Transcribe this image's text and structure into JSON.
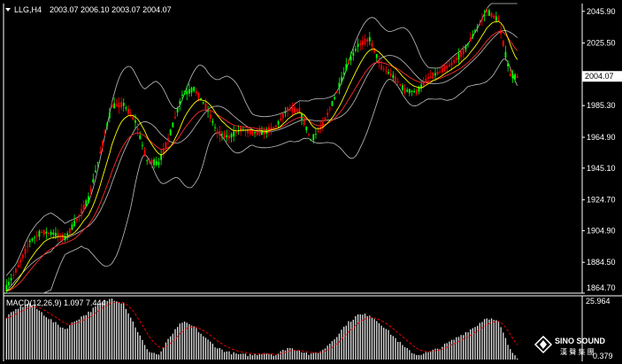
{
  "header": {
    "symbol_label": "LLG,H4",
    "ohlc_text": "2003.07 2006.10 2003.07 2004.07"
  },
  "price_axis": {
    "ticks": [
      "2045.90",
      "2025.50",
      "2004.07",
      "1985.30",
      "1964.90",
      "1945.10",
      "1924.70",
      "1904.90",
      "1884.50",
      "1864.70"
    ],
    "current_price": "2004.07",
    "range": [
      1864.7,
      2050.9
    ]
  },
  "macd": {
    "label": "MACD(12,26,9) 1.097 7.444",
    "top_value": "25.964",
    "bottom_value": "0.379",
    "range": [
      0,
      26
    ]
  },
  "logo": {
    "brand": "SINO SOUND",
    "subtitle": "漢 聲 集 團"
  },
  "colors": {
    "background": "#000000",
    "bull_candle": "#ff0000",
    "bear_candle": "#00ff00",
    "ma_fast": "#ffff00",
    "ma_slow": "#ff2a2a",
    "bollinger": "#c0c0c0",
    "macd_histogram": "#e0e0e0",
    "macd_signal": "#ff0000",
    "axis": "#ffffff"
  },
  "chart_data": {
    "type": "candlestick",
    "price_anchor_points": [
      [
        0,
        1868
      ],
      [
        5,
        1882
      ],
      [
        10,
        1898
      ],
      [
        15,
        1904
      ],
      [
        20,
        1903
      ],
      [
        25,
        1900
      ],
      [
        30,
        1912
      ],
      [
        35,
        1925
      ],
      [
        40,
        1955
      ],
      [
        45,
        1985
      ],
      [
        50,
        1986
      ],
      [
        55,
        1975
      ],
      [
        60,
        1950
      ],
      [
        65,
        1948
      ],
      [
        70,
        1968
      ],
      [
        75,
        1992
      ],
      [
        80,
        1996
      ],
      [
        85,
        1985
      ],
      [
        90,
        1968
      ],
      [
        95,
        1965
      ],
      [
        100,
        1970
      ],
      [
        105,
        1968
      ],
      [
        110,
        1968
      ],
      [
        115,
        1972
      ],
      [
        120,
        1983
      ],
      [
        125,
        1982
      ],
      [
        130,
        1963
      ],
      [
        135,
        1973
      ],
      [
        140,
        1990
      ],
      [
        145,
        2010
      ],
      [
        150,
        2024
      ],
      [
        155,
        2028
      ],
      [
        160,
        2010
      ],
      [
        165,
        2004
      ],
      [
        170,
        1995
      ],
      [
        175,
        1994
      ],
      [
        180,
        2003
      ],
      [
        185,
        2007
      ],
      [
        190,
        2012
      ],
      [
        195,
        2020
      ],
      [
        200,
        2033
      ],
      [
        205,
        2046
      ],
      [
        210,
        2040
      ],
      [
        213,
        2018
      ],
      [
        215,
        2005
      ],
      [
        218,
        2003
      ]
    ],
    "macd_histogram_anchor_points": [
      [
        0,
        18
      ],
      [
        5,
        22
      ],
      [
        10,
        24
      ],
      [
        15,
        20
      ],
      [
        20,
        16
      ],
      [
        25,
        13
      ],
      [
        30,
        17
      ],
      [
        35,
        20
      ],
      [
        40,
        24
      ],
      [
        45,
        26
      ],
      [
        50,
        24
      ],
      [
        55,
        14
      ],
      [
        60,
        4
      ],
      [
        65,
        2
      ],
      [
        70,
        10
      ],
      [
        75,
        16
      ],
      [
        80,
        14
      ],
      [
        85,
        9
      ],
      [
        90,
        5
      ],
      [
        95,
        3
      ],
      [
        100,
        2
      ],
      [
        105,
        2
      ],
      [
        110,
        3
      ],
      [
        115,
        2
      ],
      [
        120,
        5
      ],
      [
        125,
        4
      ],
      [
        130,
        2
      ],
      [
        135,
        4
      ],
      [
        140,
        9
      ],
      [
        145,
        15
      ],
      [
        150,
        19
      ],
      [
        155,
        19
      ],
      [
        160,
        15
      ],
      [
        165,
        10
      ],
      [
        170,
        5
      ],
      [
        175,
        2
      ],
      [
        180,
        3
      ],
      [
        185,
        5
      ],
      [
        190,
        8
      ],
      [
        195,
        11
      ],
      [
        200,
        14
      ],
      [
        205,
        18
      ],
      [
        210,
        16
      ],
      [
        215,
        4
      ],
      [
        218,
        1
      ]
    ],
    "bar_count": 219,
    "ylim": [
      1864.7,
      2050.9
    ]
  }
}
